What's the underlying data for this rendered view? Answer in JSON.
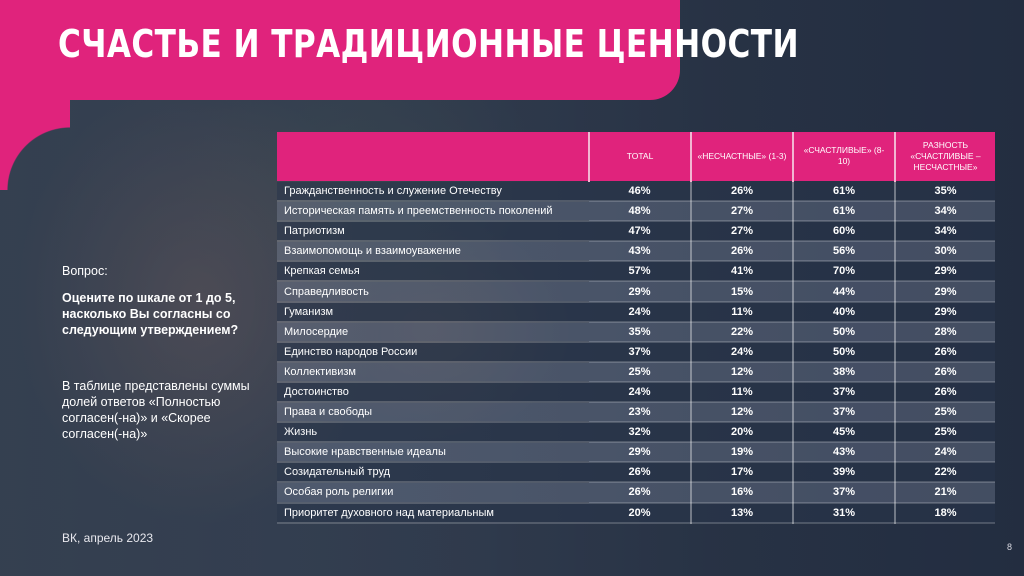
{
  "title": "СЧАСТЬЕ И ТРАДИЦИОННЫЕ ЦЕННОСТИ",
  "colors": {
    "accent": "#e0237c",
    "background": "#2f3b4f"
  },
  "question": {
    "label": "Вопрос:",
    "text": "Оцените по шкале от 1 до 5, насколько Вы согласны со следующим утверждением?",
    "note": "В таблице представлены суммы долей ответов «Полностью согласен(-на)» и «Скорее согласен(-на)»"
  },
  "source": "ВК, апрель 2023",
  "page_number": "8",
  "table": {
    "headers": [
      "",
      "TOTAL",
      "«НЕСЧАСТНЫЕ» (1-3)",
      "«СЧАСТЛИВЫЕ» (8-10)",
      "РАЗНОСТЬ «СЧАСТЛИВЫЕ – НЕСЧАСТНЫЕ»"
    ],
    "rows": [
      [
        "Гражданственность и служение Отечеству",
        "46%",
        "26%",
        "61%",
        "35%"
      ],
      [
        "Историческая память и преемственность поколений",
        "48%",
        "27%",
        "61%",
        "34%"
      ],
      [
        "Патриотизм",
        "47%",
        "27%",
        "60%",
        "34%"
      ],
      [
        "Взаимопомощь и взаимоуважение",
        "43%",
        "26%",
        "56%",
        "30%"
      ],
      [
        "Крепкая семья",
        "57%",
        "41%",
        "70%",
        "29%"
      ],
      [
        "Справедливость",
        "29%",
        "15%",
        "44%",
        "29%"
      ],
      [
        "Гуманизм",
        "24%",
        "11%",
        "40%",
        "29%"
      ],
      [
        "Милосердие",
        "35%",
        "22%",
        "50%",
        "28%"
      ],
      [
        "Единство народов России",
        "37%",
        "24%",
        "50%",
        "26%"
      ],
      [
        "Коллективизм",
        "25%",
        "12%",
        "38%",
        "26%"
      ],
      [
        "Достоинство",
        "24%",
        "11%",
        "37%",
        "26%"
      ],
      [
        "Права и свободы",
        "23%",
        "12%",
        "37%",
        "25%"
      ],
      [
        "Жизнь",
        "32%",
        "20%",
        "45%",
        "25%"
      ],
      [
        "Высокие нравственные идеалы",
        "29%",
        "19%",
        "43%",
        "24%"
      ],
      [
        "Созидательный труд",
        "26%",
        "17%",
        "39%",
        "22%"
      ],
      [
        "Особая роль религии",
        "26%",
        "16%",
        "37%",
        "21%"
      ],
      [
        "Приоритет духовного над материальным",
        "20%",
        "13%",
        "31%",
        "18%"
      ]
    ]
  }
}
